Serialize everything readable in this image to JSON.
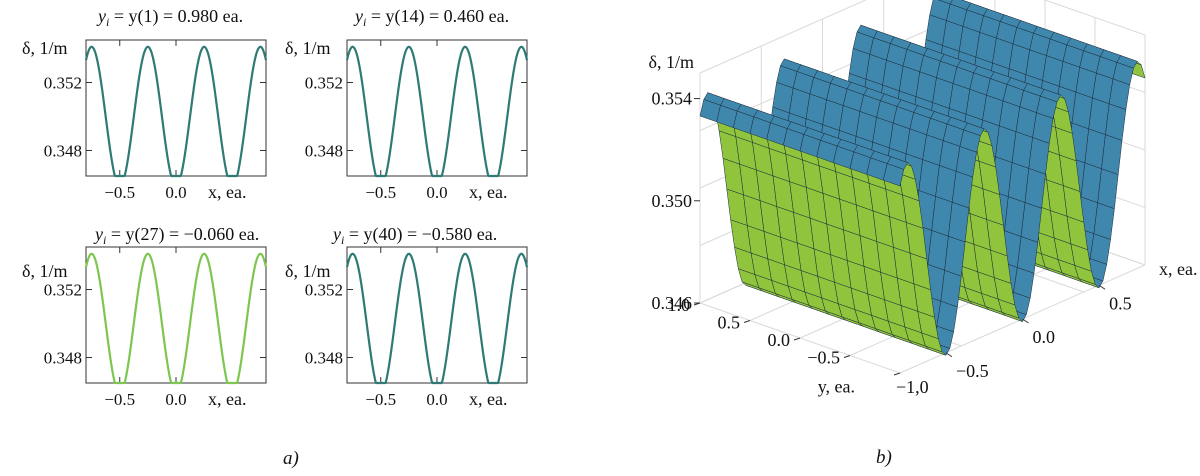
{
  "captions": {
    "a": "a)",
    "b": "b)"
  },
  "colors": {
    "curve_dark": "#2f7a75",
    "curve_light": "#7dc650",
    "surface_blue": "#3f87ad",
    "surface_green": "#8fc43c",
    "grid": "#d9d9d9"
  },
  "chart_data": [
    {
      "type": "line",
      "title": {
        "prefix": "y",
        "sub": "i",
        "rest": " = y(1) = 0.980 ea."
      },
      "ylabel": "δ, 1/m",
      "xlabel": "x, ea.",
      "xticks": [
        "−0.5",
        "0.0"
      ],
      "yticks": [
        "0.352",
        "0.348"
      ],
      "xlim": [
        -0.8,
        0.8
      ],
      "ylim": [
        0.3465,
        0.3545
      ],
      "series": [
        {
          "mean": 0.35,
          "amplitude": 0.0041,
          "period": 0.5,
          "phase_x": -0.25
        }
      ]
    },
    {
      "type": "line",
      "title": {
        "prefix": "y",
        "sub": "i",
        "rest": " = y(14) = 0.460 ea."
      },
      "ylabel": "δ, 1/m",
      "xlabel": "x, ea.",
      "xticks": [
        "−0.5",
        "0.0"
      ],
      "yticks": [
        "0.352",
        "0.348"
      ],
      "xlim": [
        -0.8,
        0.8
      ],
      "ylim": [
        0.3465,
        0.3545
      ],
      "series": [
        {
          "mean": 0.35,
          "amplitude": 0.0041,
          "period": 0.5,
          "phase_x": -0.25
        }
      ]
    },
    {
      "type": "line",
      "title": {
        "prefix": "y",
        "sub": "i",
        "rest": " = y(27) = −0.060 ea."
      },
      "ylabel": "δ, 1/m",
      "xlabel": "x, ea.",
      "xticks": [
        "−0.5",
        "0.0"
      ],
      "yticks": [
        "0.352",
        "0.348"
      ],
      "xlim": [
        -0.8,
        0.8
      ],
      "ylim": [
        0.3465,
        0.3545
      ],
      "series": [
        {
          "mean": 0.35,
          "amplitude": 0.0041,
          "period": 0.5,
          "phase_x": -0.25
        }
      ]
    },
    {
      "type": "line",
      "title": {
        "prefix": "y",
        "sub": "i",
        "rest": " = y(40) = −0.580 ea."
      },
      "ylabel": "δ, 1/m",
      "xlabel": "x, ea.",
      "xticks": [
        "−0.5",
        "0.0"
      ],
      "yticks": [
        "0.352",
        "0.348"
      ],
      "xlim": [
        -0.8,
        0.8
      ],
      "ylim": [
        0.3465,
        0.3545
      ],
      "series": [
        {
          "mean": 0.35,
          "amplitude": 0.0041,
          "period": 0.5,
          "phase_x": -0.25
        }
      ]
    },
    {
      "type": "surface",
      "zlabel": "δ, 1/m",
      "xlabel": "x, ea.",
      "ylabel": "y, ea.",
      "zticks": [
        "0.346",
        "0.350",
        "0.354"
      ],
      "xticks": [
        "−0.5",
        "0.0",
        "0.5"
      ],
      "yticks": [
        "1.0",
        "0.5",
        "0.0",
        "−0.5",
        "−1,0"
      ],
      "xlim": [
        -0.8,
        0.8
      ],
      "ylim": [
        -1.0,
        1.0
      ],
      "zlim": [
        0.346,
        0.355
      ],
      "function": {
        "mean": 0.35,
        "amplitude": 0.0041,
        "period": 0.5,
        "phase_x": -0.25
      }
    }
  ]
}
